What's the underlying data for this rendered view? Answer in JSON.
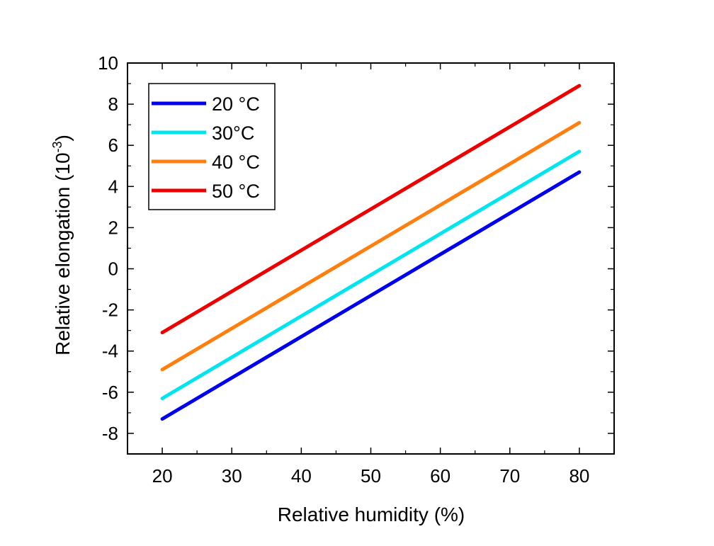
{
  "chart_data": {
    "type": "line",
    "title": "",
    "xlabel": "Relative humidity (%)",
    "ylabel_main": "Relative elongation (10",
    "ylabel_exp": "-3",
    "ylabel_close": ")",
    "xlim": [
      15,
      85
    ],
    "ylim": [
      -9,
      10
    ],
    "xticks": [
      20,
      30,
      40,
      50,
      60,
      70,
      80
    ],
    "yticks": [
      -8,
      -6,
      -4,
      -2,
      0,
      2,
      4,
      6,
      8,
      10
    ],
    "grid": false,
    "legend_position": "top-left",
    "series": [
      {
        "name": "20 °C",
        "color": "#0000ee",
        "x": [
          20,
          80
        ],
        "y": [
          -7.3,
          4.7
        ]
      },
      {
        "name": "30°C",
        "color": "#00e5ee",
        "x": [
          20,
          80
        ],
        "y": [
          -6.3,
          5.7
        ]
      },
      {
        "name": "40 °C",
        "color": "#ff7f0e",
        "x": [
          20,
          80
        ],
        "y": [
          -4.9,
          7.1
        ]
      },
      {
        "name": "50 °C",
        "color": "#ee0000",
        "x": [
          20,
          80
        ],
        "y": [
          -3.1,
          8.9
        ]
      }
    ]
  }
}
